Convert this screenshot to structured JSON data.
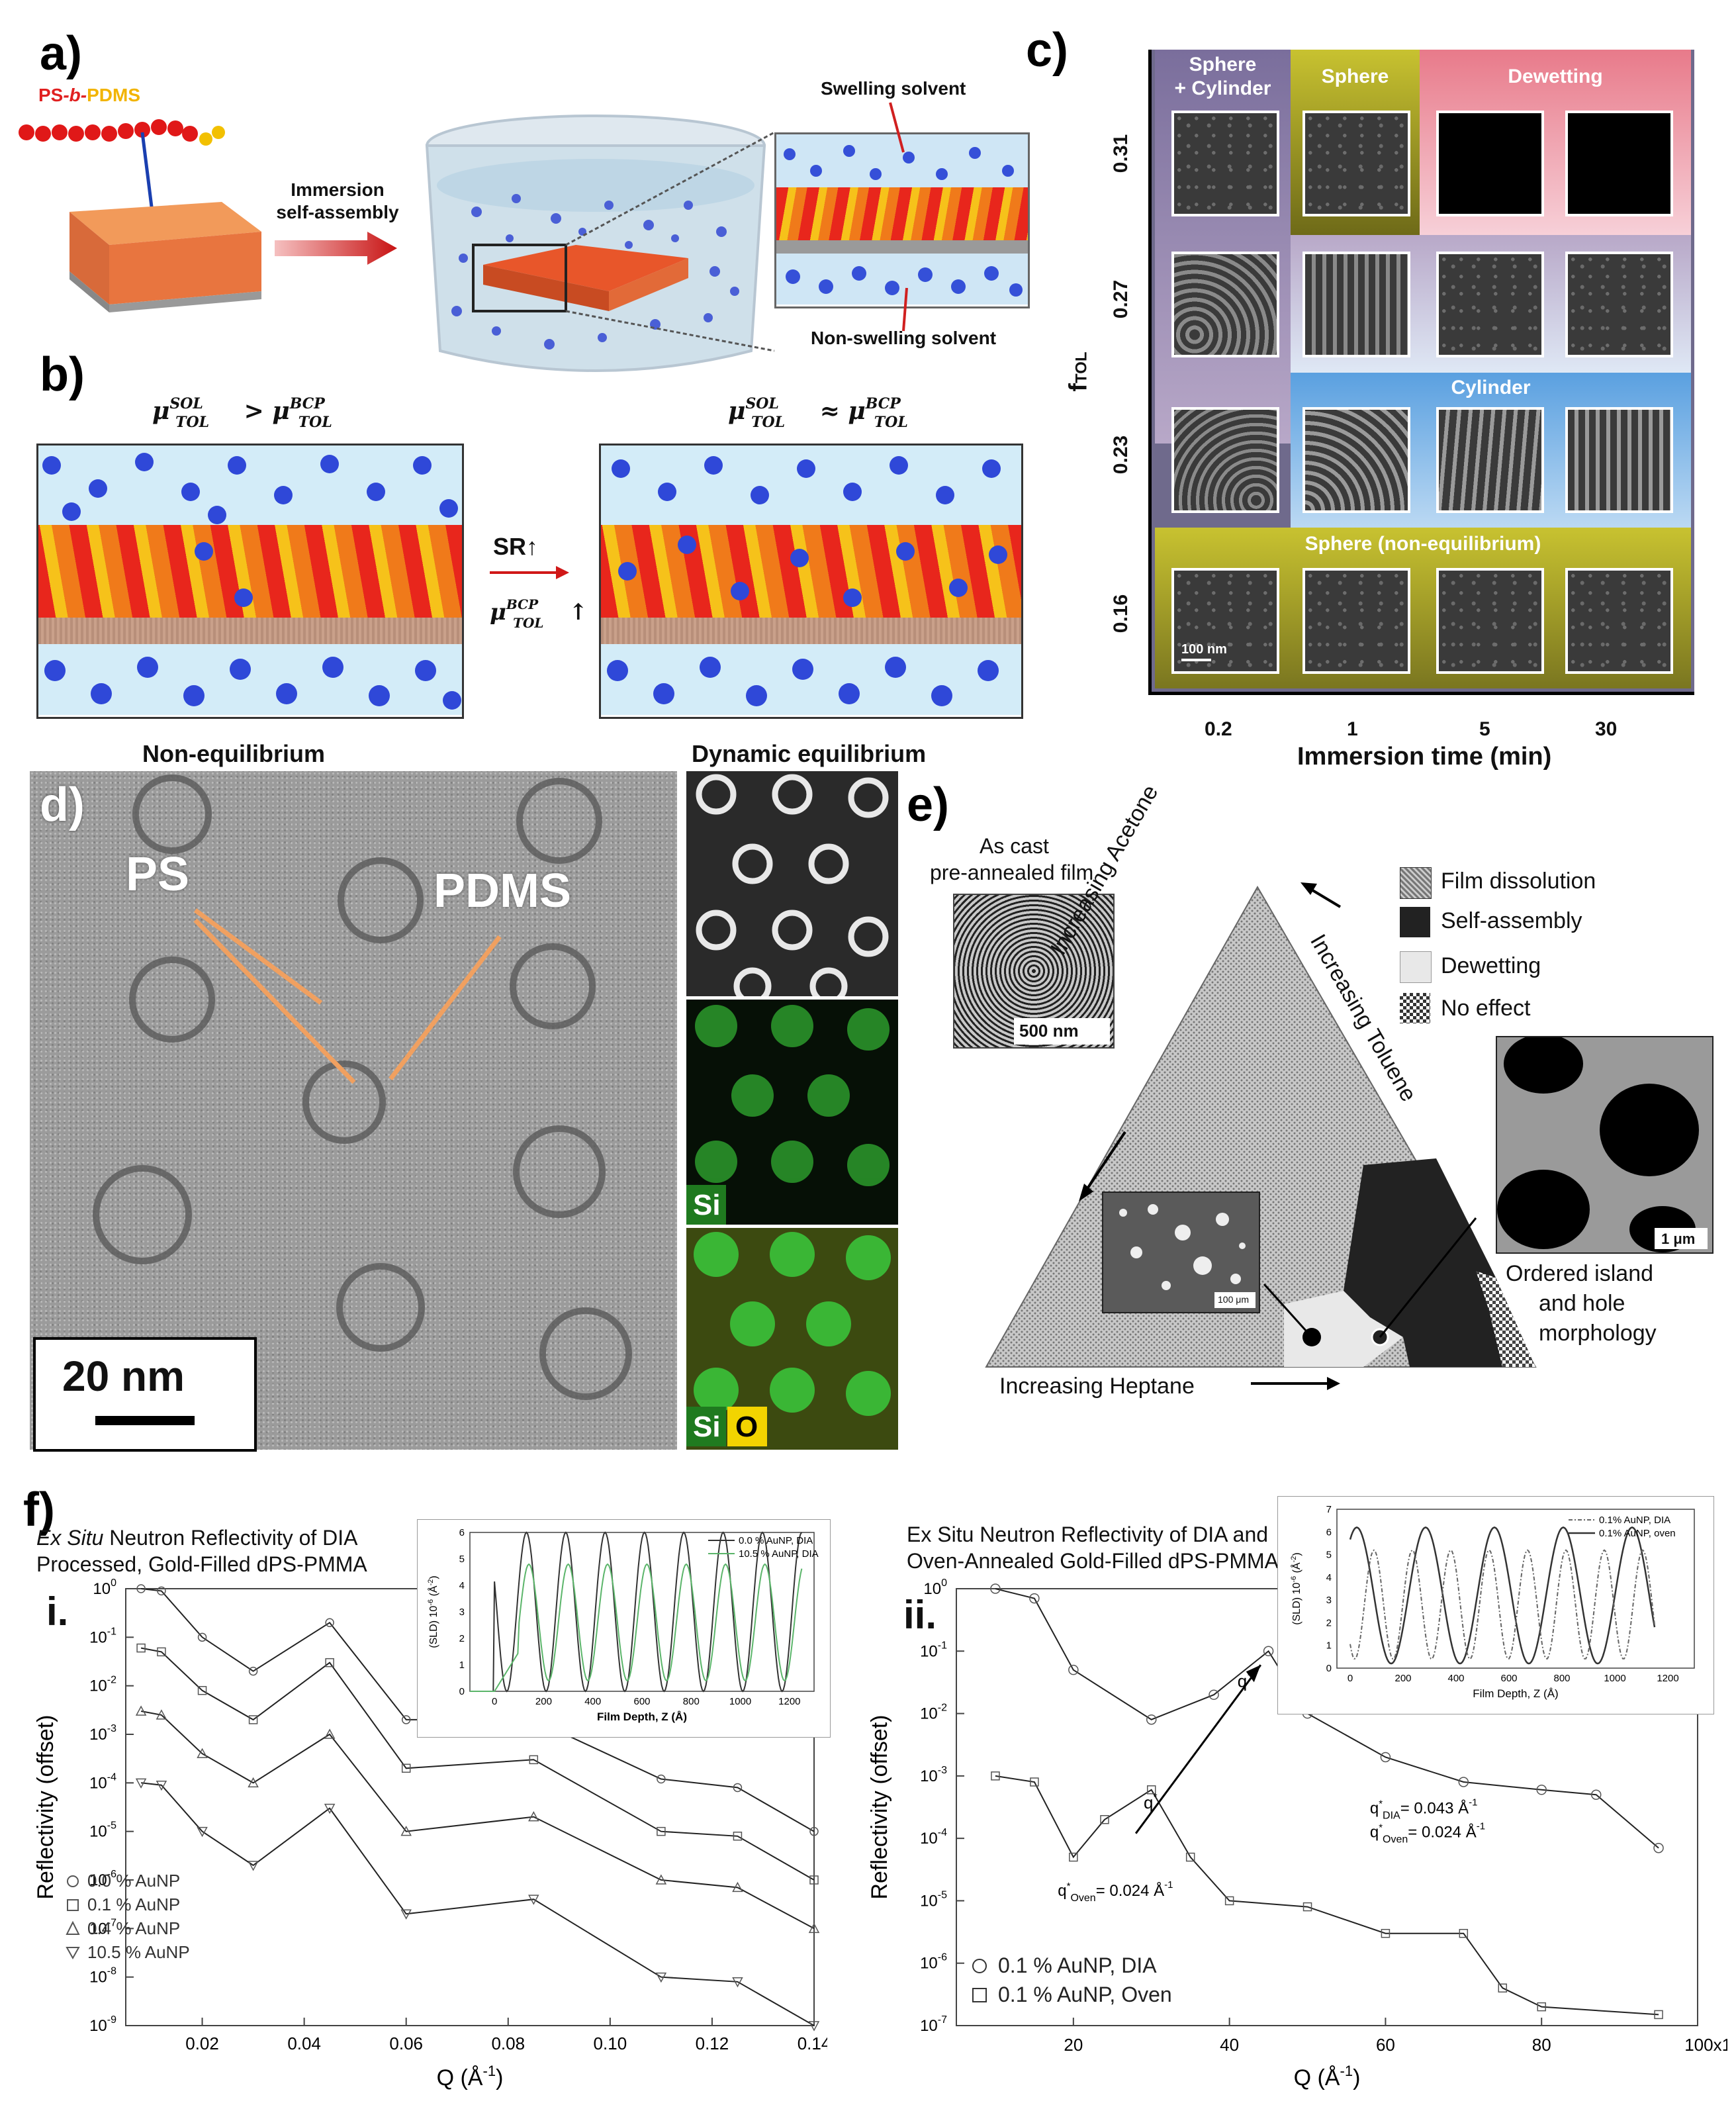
{
  "panel_a": {
    "label": "a)",
    "polymer_ps": "PS",
    "polymer_b": "-b-",
    "polymer_pdms": "PDMS",
    "arrow_text_1": "Immersion",
    "arrow_text_2": "self-assembly",
    "swelling": "Swelling solvent",
    "nonswelling": "Non-swelling solvent"
  },
  "panel_b": {
    "label": "b)",
    "eq_left": "μ",
    "eq_right": "μ",
    "sr": "SR↑",
    "mu_up": "μ",
    "sol": "SOL",
    "bcp": "BCP",
    "tol": "TOL",
    "gt": ">",
    "approx": "≈",
    "up": "↑"
  },
  "panel_c": {
    "label": "c)",
    "headers": [
      "Sphere",
      "+ Cylinder",
      "Sphere",
      "Dewetting",
      "Cylinder",
      "Sphere (non-equilibrium)"
    ],
    "y_ticks": [
      "0.31",
      "0.27",
      "0.23",
      "0.16"
    ],
    "y_label": "f",
    "y_label_sub": "TOL",
    "x_ticks": [
      "0.2",
      "1",
      "5",
      "30"
    ],
    "x_label": "Immersion time (min)",
    "scale": "100 nm"
  },
  "panel_d": {
    "label": "d)",
    "left_title": "Non-equilibrium",
    "right_title": "Dynamic equilibrium",
    "ps": "PS",
    "pdms": "PDMS",
    "scale": "20 nm",
    "si": "Si",
    "si2": "Si",
    "o": "O"
  },
  "panel_e": {
    "label": "e)",
    "as_cast_1": "As cast",
    "as_cast_2": "pre-annealed film",
    "scale1": "500 nm",
    "acetone": "Increasing Acetone",
    "toluene": "Increasing Toluene",
    "heptane": "Increasing Heptane",
    "legend": [
      "Film dissolution",
      "Self-assembly",
      "Dewetting",
      "No effect"
    ],
    "scale2": "1 μm",
    "scale3": "100 μm",
    "ordered_1": "Ordered island",
    "ordered_2": "and hole",
    "ordered_3": "morphology"
  },
  "panel_f": {
    "label": "f)",
    "i_title_1_it": "Ex Situ",
    "i_title_1": " Neutron Reflectivity of DIA",
    "i_title_2": "Processed, Gold-Filled dPS-PMMA",
    "i_label": "i.",
    "i_xlabel": "Q (Å",
    "i_ylabel": "Reflectivity (offset)",
    "i_xticks": [
      "0.02",
      "0.04",
      "0.06",
      "0.08",
      "0.10",
      "0.12",
      "0.14"
    ],
    "i_yticks": [
      "10",
      "10",
      "10",
      "10",
      "10",
      "10",
      "10",
      "10",
      "10",
      "10"
    ],
    "i_ytick_exp": [
      "0",
      "-1",
      "-2",
      "-3",
      "-4",
      "-5",
      "-6",
      "-7",
      "-8",
      "-9"
    ],
    "i_legend": [
      "0.0 % AuNP",
      "0.1 % AuNP",
      "0.4 % AuNP",
      "10.5 % AuNP"
    ],
    "i_inset_legend": [
      "0.0 % AuNP, DIA",
      "10.5 % AuNP, DIA"
    ],
    "i_inset_xlabel": "Film Depth, Z (Å)",
    "i_inset_ylabel": "(SLD) 10",
    "i_inset_xticks": [
      "0",
      "200",
      "400",
      "600",
      "800",
      "1000",
      "1200"
    ],
    "i_inset_yticks": [
      "0",
      "1",
      "2",
      "3",
      "4",
      "5",
      "6"
    ],
    "ii_title_1": "Ex Situ Neutron Reflectivity of DIA and",
    "ii_title_2": "Oven-Annealed Gold-Filled dPS-PMMA",
    "ii_label": "ii.",
    "ii_xlabel": "Q (Å",
    "ii_ylabel": "Reflectivity (offset)",
    "ii_xticks": [
      "20",
      "40",
      "60",
      "80",
      "100x10"
    ],
    "ii_x_exp": "-3",
    "ii_yticks": [
      "10",
      "10",
      "10",
      "10",
      "10",
      "10",
      "10",
      "10"
    ],
    "ii_ytick_exp": [
      "0",
      "-1",
      "-2",
      "-3",
      "-4",
      "-5",
      "-6",
      "-7"
    ],
    "ii_legend": [
      "0.1 % AuNP, DIA",
      "0.1 % AuNP, Oven"
    ],
    "ii_inset_legend": [
      "0.1% AuNP, DIA",
      "0.1% AuNP, oven"
    ],
    "ii_inset_xlabel": "Film Depth, Z (Å)",
    "ii_inset_ylabel": "(SLD) 10",
    "ii_inset_xticks": [
      "0",
      "200",
      "400",
      "600",
      "800",
      "1000",
      "1200"
    ],
    "ii_inset_yticks": [
      "0",
      "1",
      "2",
      "3",
      "4",
      "5",
      "6",
      "7"
    ],
    "q_star": "q",
    "q_dia": "q",
    "q_dia_val": "= 0.043 Å",
    "q_oven": "q",
    "q_oven_val": "= 0.024 Å",
    "q_oven2": "q",
    "q_oven2_val": "= 0.024 Å",
    "dia_sub": "DIA",
    "oven_sub": "Oven"
  },
  "chart_data": [
    {
      "type": "line",
      "title": "",
      "xlabel": "Q (Å-1)",
      "ylabel": "Reflectivity (offset)",
      "xlim": [
        0.005,
        0.14
      ],
      "ylim": [
        1e-09,
        1
      ],
      "log_y": true,
      "series": [
        {
          "name": "0.0 % AuNP",
          "x": [
            0.008,
            0.012,
            0.02,
            0.03,
            0.045,
            0.06,
            0.085,
            0.11,
            0.125,
            0.14
          ],
          "y": [
            1,
            0.9,
            0.1,
            0.02,
            0.2,
            0.002,
            0.002,
            0.00012,
            8e-05,
            1e-05
          ]
        },
        {
          "name": "0.1 % AuNP",
          "x": [
            0.008,
            0.012,
            0.02,
            0.03,
            0.045,
            0.06,
            0.085,
            0.11,
            0.125,
            0.14
          ],
          "y": [
            0.06,
            0.05,
            0.008,
            0.002,
            0.03,
            0.0002,
            0.0003,
            1e-05,
            8e-06,
            1e-06
          ]
        },
        {
          "name": "0.4 % AuNP",
          "x": [
            0.008,
            0.012,
            0.02,
            0.03,
            0.045,
            0.06,
            0.085,
            0.11,
            0.125,
            0.14
          ],
          "y": [
            0.003,
            0.0025,
            0.0004,
            0.0001,
            0.001,
            1e-05,
            2e-05,
            1e-06,
            7e-07,
            1e-07
          ]
        },
        {
          "name": "10.5 % AuNP",
          "x": [
            0.008,
            0.012,
            0.02,
            0.03,
            0.045,
            0.06,
            0.085,
            0.11,
            0.125,
            0.14
          ],
          "y": [
            0.0001,
            9e-05,
            1e-05,
            2e-06,
            3e-05,
            2e-07,
            4e-07,
            1e-08,
            8e-09,
            1e-09
          ]
        }
      ]
    },
    {
      "type": "line",
      "title": "",
      "xlabel": "Q (Å-1)",
      "ylabel": "Reflectivity (offset)",
      "xlim": [
        5,
        100
      ],
      "ylim": [
        1e-07,
        1
      ],
      "log_y": true,
      "series": [
        {
          "name": "0.1 % AuNP, DIA",
          "x": [
            10,
            15,
            20,
            30,
            38,
            45,
            50,
            60,
            70,
            80,
            87,
            95
          ],
          "y": [
            1,
            0.7,
            0.05,
            0.008,
            0.02,
            0.1,
            0.01,
            0.002,
            0.0008,
            0.0006,
            0.0005,
            7e-05
          ]
        },
        {
          "name": "0.1 % AuNP, Oven",
          "x": [
            10,
            15,
            20,
            24,
            30,
            35,
            40,
            50,
            60,
            70,
            75,
            80,
            95
          ],
          "y": [
            0.001,
            0.0008,
            5e-05,
            0.0002,
            0.0006,
            5e-05,
            1e-05,
            8e-06,
            3e-06,
            3e-06,
            4e-07,
            2e-07,
            1.5e-07
          ]
        }
      ]
    }
  ]
}
